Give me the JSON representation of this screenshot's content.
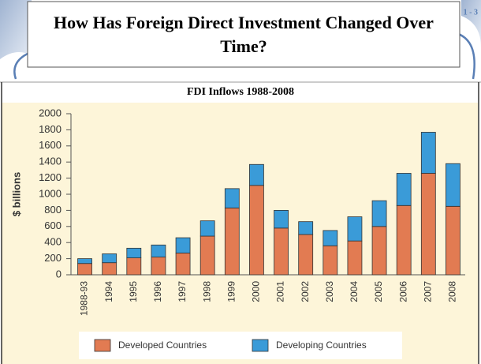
{
  "slide_title": "How Has Foreign Direct Investment Changed Over Time?",
  "slide_number": "1 - 3",
  "chart_data": {
    "type": "stacked_bar",
    "title": "FDI Inflows 1988-2008",
    "y_label": "$ billions",
    "categories": [
      "1988-93",
      "1994",
      "1995",
      "1996",
      "1997",
      "1998",
      "1999",
      "2000",
      "2001",
      "2002",
      "2003",
      "2004",
      "2005",
      "2006",
      "2007",
      "2008"
    ],
    "series": [
      {
        "name": "Developed Countries",
        "color": "#e27b52",
        "values": [
          140,
          150,
          210,
          220,
          270,
          480,
          830,
          1110,
          580,
          500,
          360,
          420,
          600,
          860,
          1260,
          850
        ]
      },
      {
        "name": "Developing Countries",
        "color": "#3a9bd8",
        "values": [
          60,
          110,
          120,
          150,
          190,
          190,
          240,
          260,
          220,
          160,
          190,
          300,
          320,
          400,
          510,
          530
        ]
      }
    ],
    "ylim": [
      0,
      2000
    ],
    "yticks": [
      0,
      200,
      400,
      600,
      800,
      1000,
      1200,
      1400,
      1600,
      1800,
      2000
    ],
    "legend": "bottom"
  }
}
